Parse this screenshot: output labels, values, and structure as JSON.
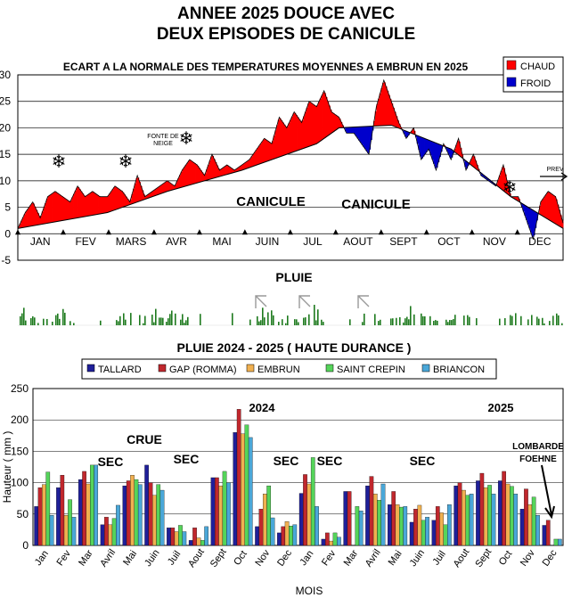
{
  "title_line1": "ANNEE  2025   DOUCE AVEC",
  "title_line2": "DEUX EPISODES DE CANICULE",
  "chart_data": [
    {
      "type": "area",
      "title": "ECART A LA NORMALE DES TEMPERATURES MOYENNES A EMBRUN EN  2025",
      "ylim": [
        -5,
        30
      ],
      "yticks": [
        -5,
        0,
        5,
        10,
        15,
        20,
        25,
        30
      ],
      "months": [
        "JAN",
        "FEV",
        "MARS",
        "AVR",
        "MAI",
        "JUIN",
        "JUL",
        "AOUT",
        "SEPT",
        "OCT",
        "NOV",
        "DEC"
      ],
      "legend": [
        {
          "name": "CHAUD",
          "color": "#ff0000"
        },
        {
          "name": "FROID",
          "color": "#0000cc"
        }
      ],
      "normal_x": [
        0,
        60,
        100,
        150,
        200,
        215,
        250,
        290,
        330,
        365
      ],
      "normal_y": [
        1,
        4,
        8,
        12,
        17,
        20,
        20.5,
        16,
        7,
        1
      ],
      "actual_x": [
        0,
        5,
        10,
        15,
        20,
        25,
        30,
        35,
        40,
        45,
        50,
        55,
        60,
        65,
        70,
        75,
        80,
        85,
        90,
        95,
        100,
        105,
        110,
        115,
        120,
        125,
        130,
        135,
        140,
        145,
        150,
        155,
        160,
        165,
        170,
        175,
        180,
        185,
        190,
        195,
        200,
        205,
        210,
        215,
        220,
        225,
        230,
        235,
        240,
        245,
        250,
        255,
        260,
        265,
        270,
        275,
        280,
        285,
        290,
        295,
        300,
        305,
        310,
        315,
        320,
        325,
        330,
        335,
        340,
        345,
        350,
        355,
        360,
        365
      ],
      "actual_y": [
        1,
        4,
        6,
        3,
        7,
        8,
        7,
        6,
        9,
        7,
        8,
        7,
        7,
        9,
        8,
        6,
        11,
        7,
        8,
        9,
        10,
        9,
        12,
        14,
        13,
        11,
        15,
        12,
        13,
        12,
        13,
        14,
        16,
        18,
        17,
        22,
        20,
        23,
        21,
        25,
        24,
        27,
        23,
        22,
        19,
        19,
        17,
        15,
        24,
        29,
        25,
        21,
        18,
        20,
        14,
        16,
        12,
        17,
        14,
        18,
        12,
        15,
        11,
        10,
        9,
        13,
        7,
        7,
        3,
        -1,
        6,
        8,
        7,
        2
      ],
      "annotations": [
        "CANICULE",
        "CANICULE",
        "FONTE DE",
        "NEIGE",
        "PREV"
      ]
    },
    {
      "type": "bar",
      "title": "PLUIE",
      "note": "daily precipitation strip"
    },
    {
      "type": "bar",
      "title": "PLUIE 2024 - 2025   ( HAUTE DURANCE )",
      "ylabel": "Hauteur ( mm )",
      "xlabel": "MOIS",
      "ylim": [
        0,
        250
      ],
      "yticks": [
        0,
        50,
        100,
        150,
        200,
        250
      ],
      "categories": [
        "Jan",
        "Fev",
        "Mar",
        "Avril",
        "Mai",
        "Juin",
        "Juil",
        "Aout",
        "Sept",
        "Oct",
        "Nov",
        "Dec",
        "Jan",
        "Fev",
        "Mar",
        "Avril",
        "Mai",
        "Juin",
        "Juil",
        "Aout",
        "Sept",
        "Oct",
        "Nov",
        "Dec"
      ],
      "series": [
        {
          "name": "TALLARD",
          "color": "#1f1f99",
          "values": [
            62,
            92,
            105,
            33,
            95,
            128,
            28,
            8,
            108,
            180,
            30,
            20,
            83,
            10,
            86,
            95,
            65,
            37,
            40,
            95,
            103,
            103,
            58,
            32
          ]
        },
        {
          "name": "GAP (ROMMA)",
          "color": "#c0272d",
          "values": [
            92,
            112,
            118,
            45,
            103,
            100,
            28,
            28,
            108,
            217,
            58,
            30,
            113,
            20,
            86,
            110,
            86,
            58,
            62,
            100,
            115,
            118,
            90,
            40
          ]
        },
        {
          "name": "EMBRUN",
          "color": "#f0b050",
          "values": [
            97,
            48,
            98,
            33,
            112,
            80,
            22,
            12,
            95,
            178,
            82,
            38,
            98,
            7,
            0,
            82,
            65,
            64,
            52,
            88,
            92,
            98,
            65,
            0
          ]
        },
        {
          "name": "SAINT CREPIN",
          "color": "#55d45a",
          "values": [
            117,
            73,
            128,
            43,
            105,
            97,
            32,
            8,
            118,
            192,
            95,
            31,
            140,
            20,
            62,
            72,
            61,
            40,
            33,
            80,
            96,
            94,
            77,
            10
          ]
        },
        {
          "name": "BRIANCON",
          "color": "#4aa7d8",
          "values": [
            48,
            45,
            128,
            64,
            97,
            88,
            22,
            30,
            100,
            172,
            44,
            33,
            62,
            13,
            55,
            98,
            62,
            45,
            65,
            82,
            82,
            82,
            48,
            10
          ]
        }
      ],
      "annotations": [
        "2024",
        "2025",
        "SEC",
        "CRUE",
        "SEC",
        "SEC",
        "SEC",
        "SEC",
        "LOMBARDE",
        "FOEHNE"
      ]
    }
  ]
}
